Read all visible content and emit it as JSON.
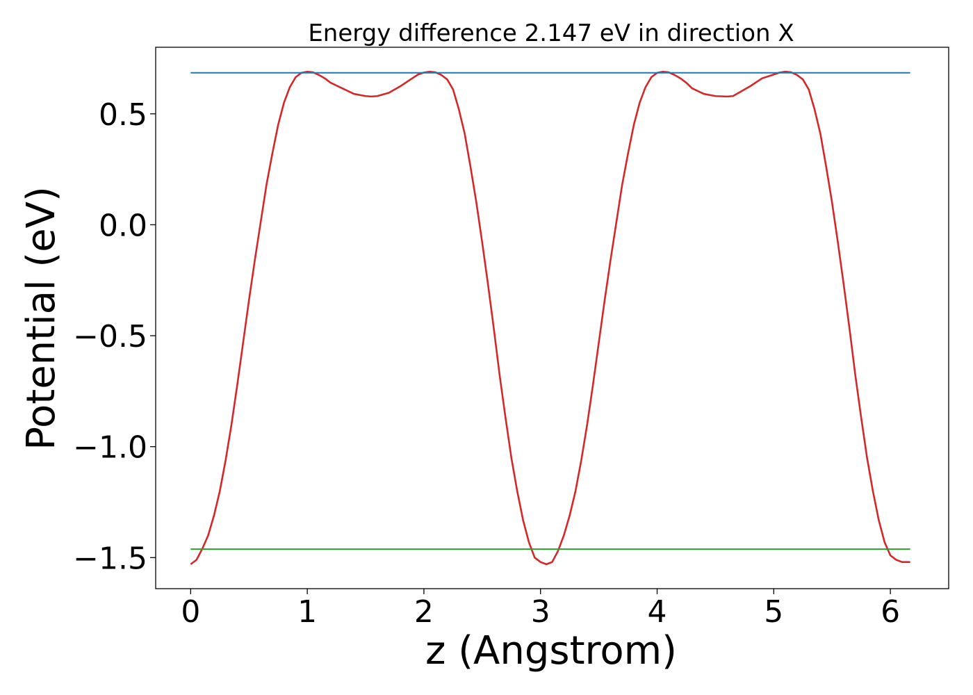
{
  "chart_data": {
    "type": "line",
    "title": "Energy difference 2.147 eV in direction X",
    "xlabel": "z (Angstrom)",
    "ylabel": "Potential (eV)",
    "xlim": [
      -0.3,
      6.5
    ],
    "ylim": [
      -1.64,
      0.8
    ],
    "xticks": [
      0,
      1,
      2,
      3,
      4,
      5,
      6
    ],
    "xtick_labels": [
      "0",
      "1",
      "2",
      "3",
      "4",
      "5",
      "6"
    ],
    "yticks": [
      0.5,
      0.0,
      -0.5,
      -1.0,
      -1.5
    ],
    "ytick_labels": [
      "0.5",
      "0.0",
      "−0.5",
      "−1.0",
      "−1.5"
    ],
    "grid": false,
    "legend": "none",
    "series": [
      {
        "color": "#d62728",
        "x": [
          0.0,
          0.05,
          0.1,
          0.15,
          0.2,
          0.25,
          0.3,
          0.35,
          0.4,
          0.45,
          0.5,
          0.55,
          0.6,
          0.65,
          0.7,
          0.75,
          0.8,
          0.85,
          0.9,
          0.95,
          1.0,
          1.05,
          1.1,
          1.15,
          1.2,
          1.3,
          1.4,
          1.5,
          1.55,
          1.6,
          1.7,
          1.8,
          1.9,
          1.95,
          2.0,
          2.05,
          2.1,
          2.15,
          2.2,
          2.25,
          2.3,
          2.35,
          2.4,
          2.45,
          2.5,
          2.55,
          2.6,
          2.65,
          2.7,
          2.75,
          2.8,
          2.85,
          2.9,
          2.95,
          3.0,
          3.05,
          3.1,
          3.15,
          3.2,
          3.25,
          3.3,
          3.35,
          3.4,
          3.45,
          3.5,
          3.55,
          3.6,
          3.65,
          3.7,
          3.75,
          3.8,
          3.85,
          3.9,
          3.95,
          4.0,
          4.05,
          4.1,
          4.15,
          4.2,
          4.25,
          4.3,
          4.4,
          4.5,
          4.6,
          4.65,
          4.7,
          4.8,
          4.9,
          5.0,
          5.05,
          5.1,
          5.15,
          5.2,
          5.25,
          5.3,
          5.35,
          5.4,
          5.45,
          5.5,
          5.55,
          5.6,
          5.65,
          5.7,
          5.75,
          5.8,
          5.85,
          5.9,
          5.95,
          6.0,
          6.05,
          6.1,
          6.17
        ],
        "y": [
          -1.53,
          -1.51,
          -1.46,
          -1.4,
          -1.31,
          -1.2,
          -1.06,
          -0.9,
          -0.72,
          -0.53,
          -0.34,
          -0.16,
          0.01,
          0.18,
          0.32,
          0.45,
          0.55,
          0.62,
          0.665,
          0.685,
          0.69,
          0.687,
          0.675,
          0.66,
          0.64,
          0.615,
          0.59,
          0.58,
          0.578,
          0.58,
          0.595,
          0.625,
          0.66,
          0.677,
          0.686,
          0.69,
          0.687,
          0.675,
          0.655,
          0.61,
          0.52,
          0.41,
          0.26,
          0.1,
          -0.08,
          -0.27,
          -0.47,
          -0.68,
          -0.87,
          -1.05,
          -1.2,
          -1.33,
          -1.43,
          -1.5,
          -1.52,
          -1.53,
          -1.52,
          -1.47,
          -1.4,
          -1.31,
          -1.2,
          -1.06,
          -0.9,
          -0.72,
          -0.53,
          -0.34,
          -0.16,
          0.01,
          0.18,
          0.32,
          0.45,
          0.55,
          0.62,
          0.665,
          0.685,
          0.69,
          0.687,
          0.675,
          0.66,
          0.64,
          0.615,
          0.59,
          0.58,
          0.578,
          0.58,
          0.595,
          0.625,
          0.66,
          0.677,
          0.686,
          0.69,
          0.687,
          0.675,
          0.655,
          0.61,
          0.52,
          0.41,
          0.26,
          0.1,
          -0.08,
          -0.27,
          -0.47,
          -0.68,
          -0.87,
          -1.05,
          -1.2,
          -1.33,
          -1.43,
          -1.49,
          -1.51,
          -1.52,
          -1.52
        ]
      },
      {
        "color": "#1f77b4",
        "x": [
          0.0,
          6.17
        ],
        "y": [
          0.685,
          0.685
        ]
      },
      {
        "color": "#2ca02c",
        "x": [
          0.0,
          6.17
        ],
        "y": [
          -1.462,
          -1.462
        ]
      }
    ]
  }
}
